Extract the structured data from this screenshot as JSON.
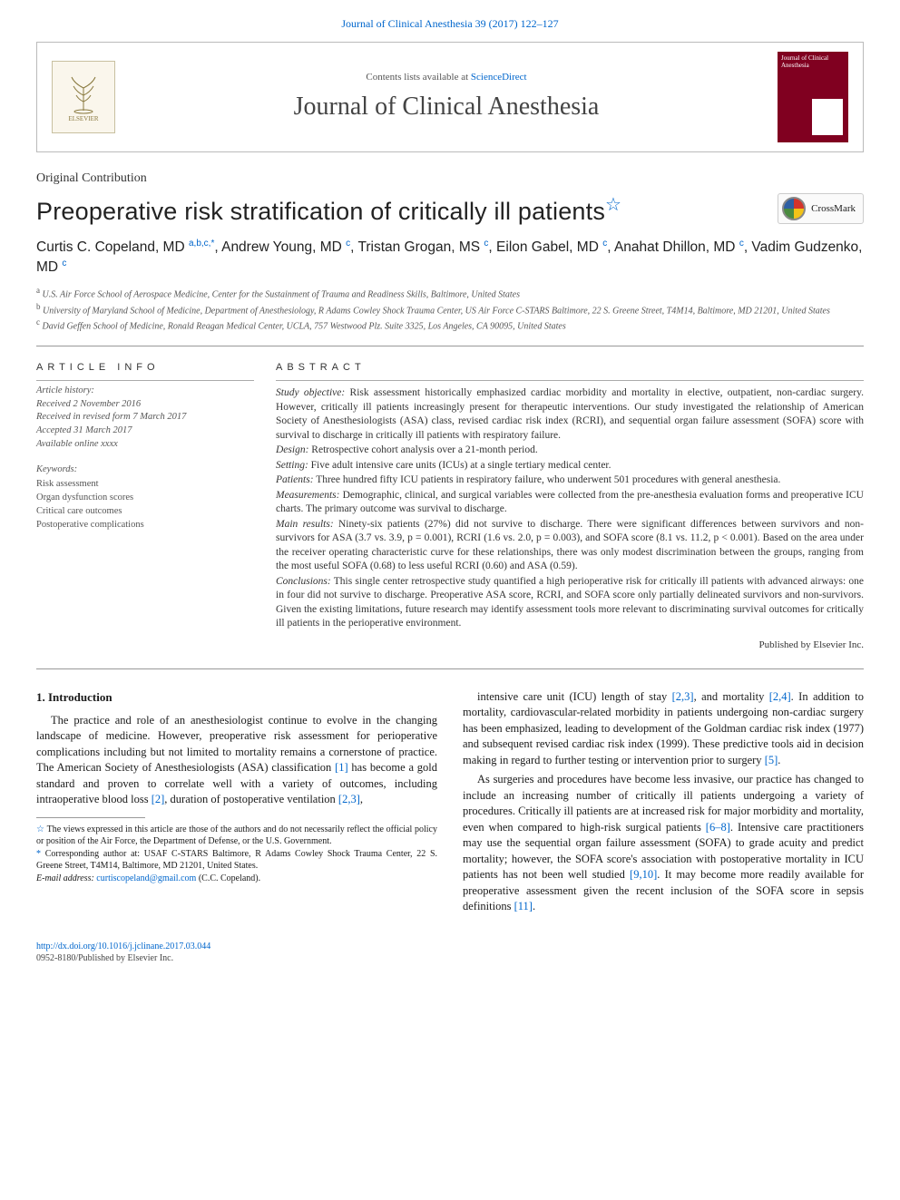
{
  "header": {
    "topCitation": "Journal of Clinical Anesthesia 39 (2017) 122–127",
    "contentsLine": "Contents lists available at ",
    "contentsLink": "ScienceDirect",
    "journalName": "Journal of Clinical Anesthesia",
    "coverTitle": "Journal of Clinical Anesthesia",
    "elsevierLabel": "ELSEVIER"
  },
  "article": {
    "type": "Original Contribution",
    "title": "Preoperative risk stratification of critically ill patients",
    "starGlyph": "☆",
    "crossmarkLabel": "CrossMark"
  },
  "authors": {
    "list": "Curtis C. Copeland, MD <sup>a,b,c,*</sup>, Andrew Young, MD <sup>c</sup>, Tristan Grogan, MS <sup>c</sup>, Eilon Gabel, MD <sup>c</sup>, Anahat Dhillon, MD <sup>c</sup>, Vadim Gudzenko, MD <sup>c</sup>"
  },
  "affiliations": [
    {
      "sup": "a",
      "text": "U.S. Air Force School of Aerospace Medicine, Center for the Sustainment of Trauma and Readiness Skills, Baltimore, United States"
    },
    {
      "sup": "b",
      "text": "University of Maryland School of Medicine, Department of Anesthesiology, R Adams Cowley Shock Trauma Center, US Air Force C-STARS Baltimore, 22 S. Greene Street, T4M14, Baltimore, MD 21201, United States"
    },
    {
      "sup": "c",
      "text": "David Geffen School of Medicine, Ronald Reagan Medical Center, UCLA, 757 Westwood Plz. Suite 3325, Los Angeles, CA 90095, United States"
    }
  ],
  "articleInfo": {
    "head": "article info",
    "historyLabel": "Article history:",
    "history": [
      "Received 2 November 2016",
      "Received in revised form 7 March 2017",
      "Accepted 31 March 2017",
      "Available online xxxx"
    ],
    "keywordsLabel": "Keywords:",
    "keywords": [
      "Risk assessment",
      "Organ dysfunction scores",
      "Critical care outcomes",
      "Postoperative complications"
    ]
  },
  "abstract": {
    "head": "abstract",
    "segments": [
      {
        "label": "Study objective:",
        "text": "Risk assessment historically emphasized cardiac morbidity and mortality in elective, outpatient, non-cardiac surgery. However, critically ill patients increasingly present for therapeutic interventions. Our study investigated the relationship of American Society of Anesthesiologists (ASA) class, revised cardiac risk index (RCRI), and sequential organ failure assessment (SOFA) score with survival to discharge in critically ill patients with respiratory failure."
      },
      {
        "label": "Design:",
        "text": "Retrospective cohort analysis over a 21-month period."
      },
      {
        "label": "Setting:",
        "text": "Five adult intensive care units (ICUs) at a single tertiary medical center."
      },
      {
        "label": "Patients:",
        "text": "Three hundred fifty ICU patients in respiratory failure, who underwent 501 procedures with general anesthesia."
      },
      {
        "label": "Measurements:",
        "text": "Demographic, clinical, and surgical variables were collected from the pre-anesthesia evaluation forms and preoperative ICU charts. The primary outcome was survival to discharge."
      },
      {
        "label": "Main results:",
        "text": "Ninety-six patients (27%) did not survive to discharge. There were significant differences between survivors and non-survivors for ASA (3.7 vs. 3.9, p = 0.001), RCRI (1.6 vs. 2.0, p = 0.003), and SOFA score (8.1 vs. 11.2, p < 0.001). Based on the area under the receiver operating characteristic curve for these relationships, there was only modest discrimination between the groups, ranging from the most useful SOFA (0.68) to less useful RCRI (0.60) and ASA (0.59)."
      },
      {
        "label": "Conclusions:",
        "text": "This single center retrospective study quantified a high perioperative risk for critically ill patients with advanced airways: one in four did not survive to discharge. Preoperative ASA score, RCRI, and SOFA score only partially delineated survivors and non-survivors. Given the existing limitations, future research may identify assessment tools more relevant to discriminating survival outcomes for critically ill patients in the perioperative environment."
      }
    ],
    "publisher": "Published by Elsevier Inc."
  },
  "body": {
    "sectionHead": "1. Introduction",
    "leftParas": [
      "The practice and role of an anesthesiologist continue to evolve in the changing landscape of medicine. However, preoperative risk assessment for perioperative complications including but not limited to mortality remains a cornerstone of practice. The American Society of Anesthesiologists (ASA) classification <a class='reflink'>[1]</a> has become a gold standard and proven to correlate well with a variety of outcomes, including intraoperative blood loss <a class='reflink'>[2]</a>, duration of postoperative ventilation <a class='reflink'>[2,3]</a>,"
    ],
    "rightParas": [
      "intensive care unit (ICU) length of stay <a class='reflink'>[2,3]</a>, and mortality <a class='reflink'>[2,4]</a>. In addition to mortality, cardiovascular-related morbidity in patients undergoing non-cardiac surgery has been emphasized, leading to development of the Goldman cardiac risk index (1977) and subsequent revised cardiac risk index (1999). These predictive tools aid in decision making in regard to further testing or intervention prior to surgery <a class='reflink'>[5]</a>.",
      "As surgeries and procedures have become less invasive, our practice has changed to include an increasing number of critically ill patients undergoing a variety of procedures. Critically ill patients are at increased risk for major morbidity and mortality, even when compared to high-risk surgical patients <a class='reflink'>[6–8]</a>. Intensive care practitioners may use the sequential organ failure assessment (SOFA) to grade acuity and predict mortality; however, the SOFA score's association with postoperative mortality in ICU patients has not been well studied <a class='reflink'>[9,10]</a>. It may become more readily available for preoperative assessment given the recent inclusion of the SOFA score in sepsis definitions <a class='reflink'>[11]</a>."
    ]
  },
  "footnotes": {
    "star": "☆",
    "starNote": "The views expressed in this article are those of the authors and do not necessarily reflect the official policy or position of the Air Force, the Department of Defense, or the U.S. Government.",
    "corr": "*",
    "corrNote": "Corresponding author at: USAF C-STARS Baltimore, R Adams Cowley Shock Trauma Center, 22 S. Greene Street, T4M14, Baltimore, MD 21201, United States.",
    "emailLabel": "E-mail address:",
    "email": "curtiscopeland@gmail.com",
    "emailSuffix": "(C.C. Copeland)."
  },
  "bottom": {
    "doi": "http://dx.doi.org/10.1016/j.jclinane.2017.03.044",
    "issn": "0952-8180/Published by Elsevier Inc."
  },
  "colors": {
    "link": "#0066cc",
    "rule": "#999999",
    "cover": "#800020"
  },
  "typography": {
    "titleFontSize": 27,
    "journalNameFontSize": 28,
    "bodyFontSize": 12.5,
    "abstractFontSize": 11.5,
    "footnoteFontSize": 10
  },
  "layout": {
    "pageWidth": 992,
    "pageHeight": 1323,
    "marginX": 40,
    "leftColWidth": 240
  }
}
